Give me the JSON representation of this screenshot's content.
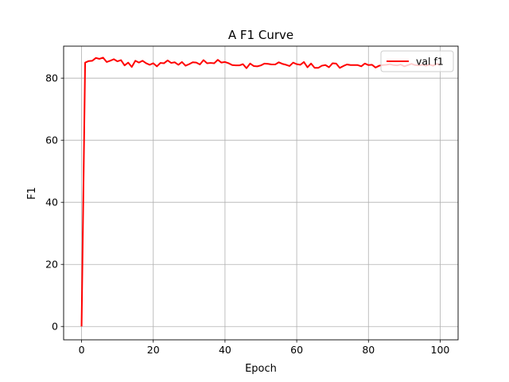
{
  "chart_data": {
    "type": "line",
    "title": "A F1 Curve",
    "xlabel": "Epoch",
    "ylabel": "F1",
    "xlim": [
      -5,
      105
    ],
    "ylim": [
      -4.3,
      90.3
    ],
    "xticks": [
      0,
      20,
      40,
      60,
      80,
      100
    ],
    "yticks": [
      0,
      20,
      40,
      60,
      80
    ],
    "grid": true,
    "legend_position": "top-right",
    "series": [
      {
        "name": "val f1",
        "color": "#ff0000",
        "x": [
          0,
          1,
          2,
          3,
          4,
          5,
          6,
          7,
          8,
          9,
          10,
          11,
          12,
          13,
          14,
          15,
          16,
          17,
          18,
          19,
          20,
          21,
          22,
          23,
          24,
          25,
          26,
          27,
          28,
          29,
          30,
          31,
          32,
          33,
          34,
          35,
          36,
          37,
          38,
          39,
          40,
          41,
          42,
          43,
          44,
          45,
          46,
          47,
          48,
          49,
          50,
          51,
          52,
          53,
          54,
          55,
          56,
          57,
          58,
          59,
          60,
          61,
          62,
          63,
          64,
          65,
          66,
          67,
          68,
          69,
          70,
          71,
          72,
          73,
          74,
          75,
          76,
          77,
          78,
          79,
          80,
          81,
          82,
          83,
          84,
          85,
          86,
          87,
          88,
          89,
          90,
          91,
          92,
          93,
          94,
          95,
          96,
          97,
          98,
          99,
          100
        ],
        "values": [
          0,
          85.0,
          85.5,
          85.6,
          86.5,
          86.2,
          86.6,
          85.2,
          85.6,
          86.1,
          85.4,
          85.8,
          84.1,
          85.0,
          83.6,
          85.6,
          85.0,
          85.6,
          84.8,
          84.3,
          84.8,
          83.8,
          84.9,
          84.8,
          85.7,
          84.9,
          85.1,
          84.3,
          85.2,
          84.0,
          84.5,
          85.1,
          85.0,
          84.4,
          85.8,
          84.8,
          84.9,
          84.8,
          85.9,
          85.0,
          85.2,
          84.8,
          84.2,
          84.1,
          84.1,
          84.5,
          83.2,
          84.7,
          83.9,
          83.8,
          84.1,
          84.7,
          84.6,
          84.4,
          84.4,
          85.1,
          84.6,
          84.3,
          83.9,
          85.0,
          84.5,
          84.3,
          85.2,
          83.5,
          84.7,
          83.3,
          83.3,
          84.0,
          84.2,
          83.5,
          84.8,
          84.7,
          83.3,
          83.9,
          84.4,
          84.2,
          84.2,
          84.2,
          83.8,
          84.7,
          84.2,
          84.3,
          83.4,
          84.0,
          84.2,
          84.3,
          84.5,
          84.2,
          84.1,
          84.4,
          83.8,
          84.2,
          84.6,
          84.2,
          84.1,
          84.3,
          84.0,
          84.4,
          84.0,
          84.6,
          84.3
        ]
      }
    ]
  }
}
